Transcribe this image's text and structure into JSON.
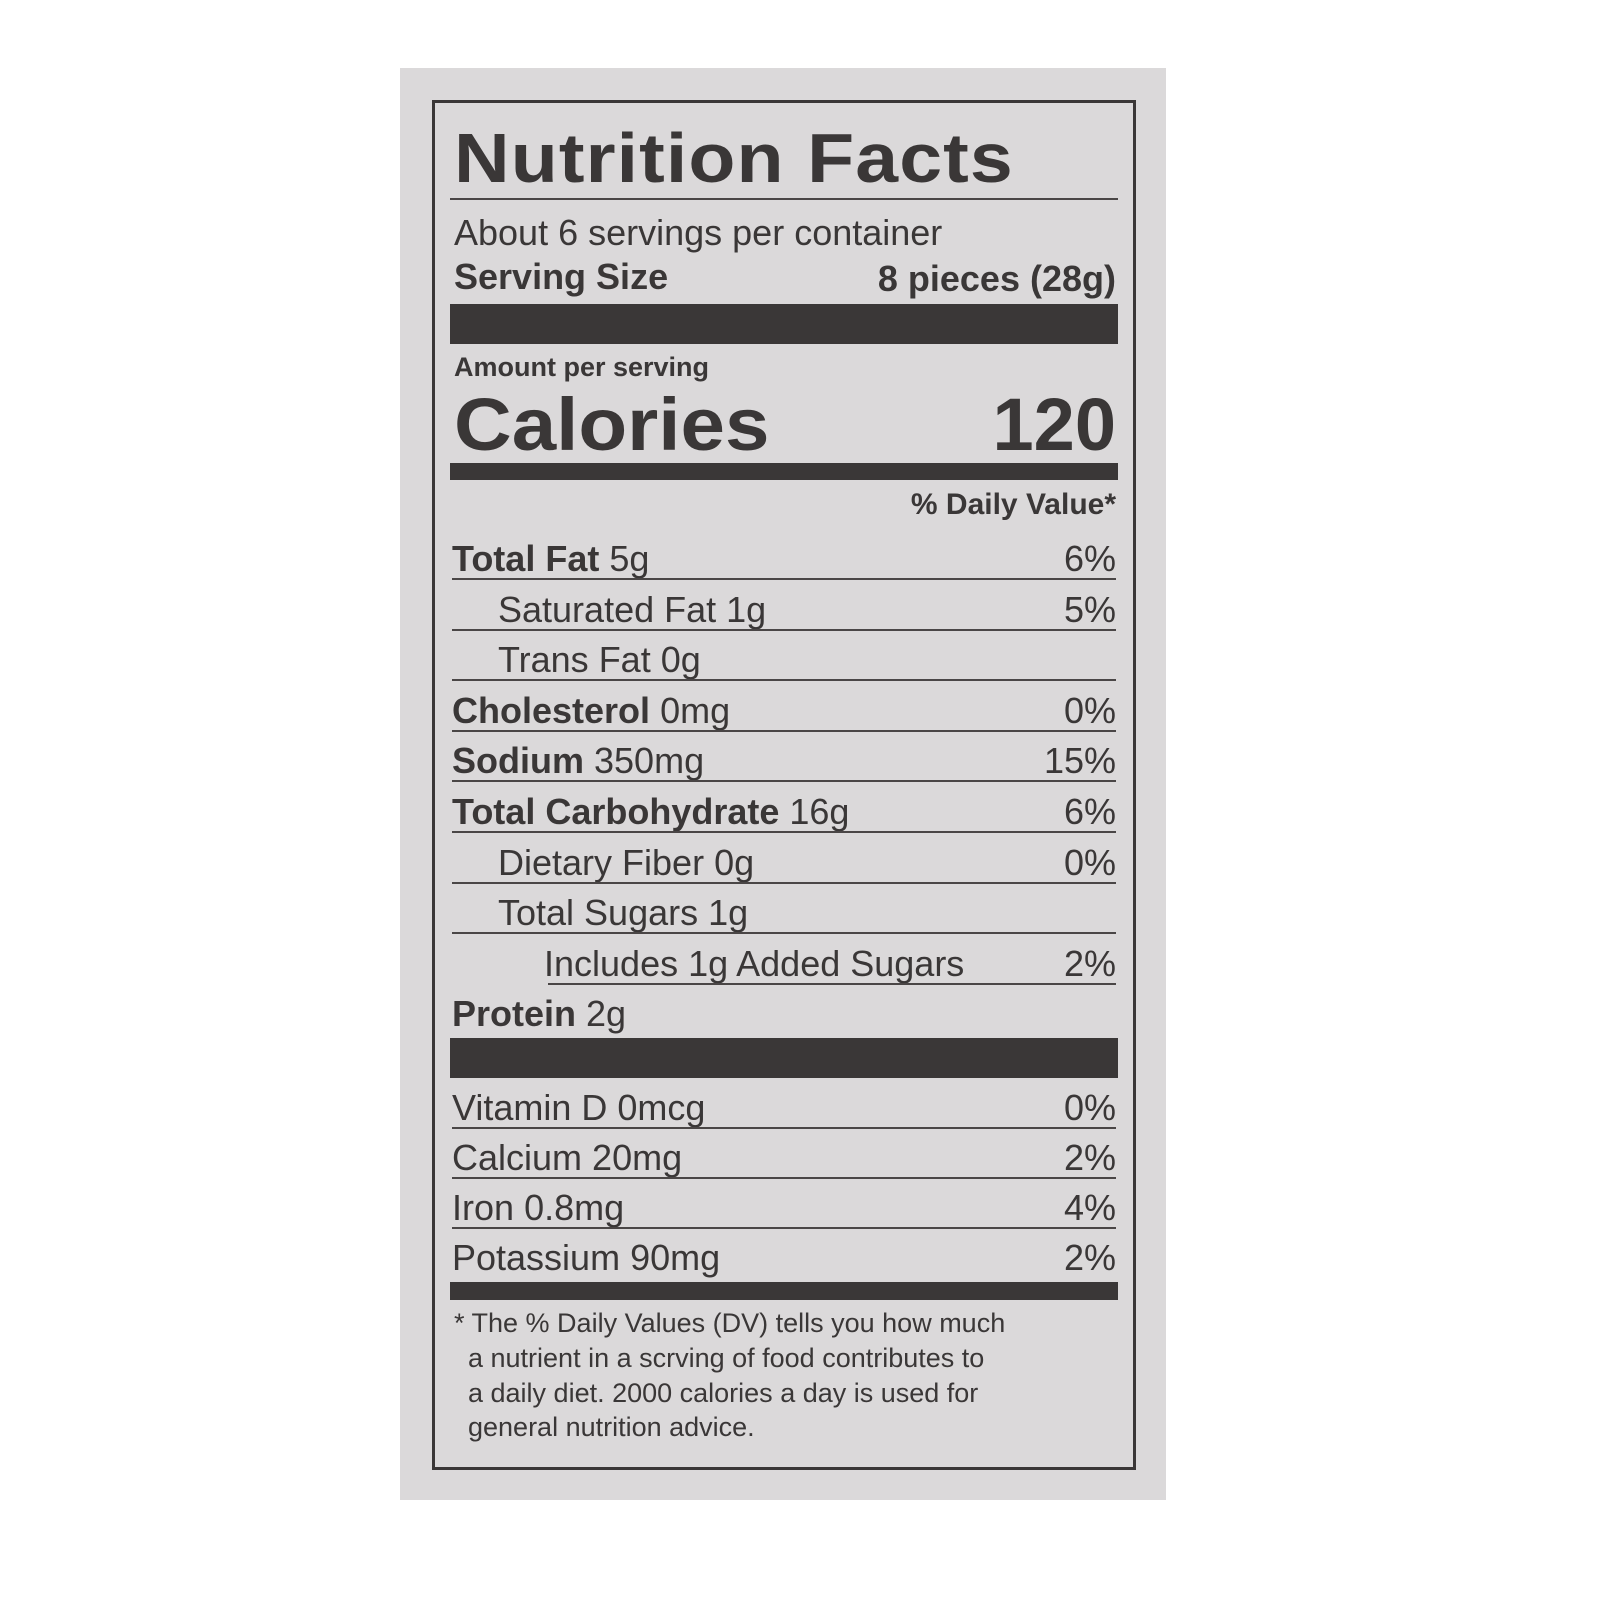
{
  "label": {
    "title": "Nutrition Facts",
    "servings_per_container": "About 6 servings per container",
    "serving_size_label": "Serving Size",
    "serving_size_value": "8 pieces (28g)",
    "amount_per_serving": "Amount per serving",
    "calories_label": "Calories",
    "calories_value": "120",
    "daily_value_header": "% Daily Value*",
    "nutrients": [
      {
        "name": "Total Fat",
        "amount": "5g",
        "dv": "6%",
        "bold": true,
        "indent": 0
      },
      {
        "name": "Saturated Fat",
        "amount": "1g",
        "dv": "5%",
        "bold": false,
        "indent": 1
      },
      {
        "name": "Trans Fat",
        "amount": "0g",
        "dv": "",
        "bold": false,
        "indent": 1
      },
      {
        "name": "Cholesterol",
        "amount": "0mg",
        "dv": "0%",
        "bold": true,
        "indent": 0
      },
      {
        "name": "Sodium",
        "amount": "350mg",
        "dv": "15%",
        "bold": true,
        "indent": 0
      },
      {
        "name": "Total Carbohydrate",
        "amount": "16g",
        "dv": "6%",
        "bold": true,
        "indent": 0
      },
      {
        "name": "Dietary Fiber",
        "amount": "0g",
        "dv": "0%",
        "bold": false,
        "indent": 1
      },
      {
        "name": "Total Sugars",
        "amount": "1g",
        "dv": "",
        "bold": false,
        "indent": 1
      },
      {
        "name": "Includes 1g Added Sugars",
        "amount": "",
        "dv": "2%",
        "bold": false,
        "indent": 2
      },
      {
        "name": "Protein",
        "amount": "2g",
        "dv": "",
        "bold": true,
        "indent": 0
      }
    ],
    "vitamins": [
      {
        "name": "Vitamin D",
        "amount": "0mcg",
        "dv": "0%"
      },
      {
        "name": "Calcium",
        "amount": "20mg",
        "dv": "2%"
      },
      {
        "name": "Iron",
        "amount": "0.8mg",
        "dv": "4%"
      },
      {
        "name": "Potassium",
        "amount": "90mg",
        "dv": "2%"
      }
    ],
    "footnote": [
      "* The % Daily Values (DV) tells you how much",
      "a nutrient in a scrving of food contributes to",
      "a daily diet. 2000 calories a day is used for",
      "general nutrition advice."
    ]
  },
  "colors": {
    "paper": "#dbd9da",
    "ink": "#3a3737"
  }
}
